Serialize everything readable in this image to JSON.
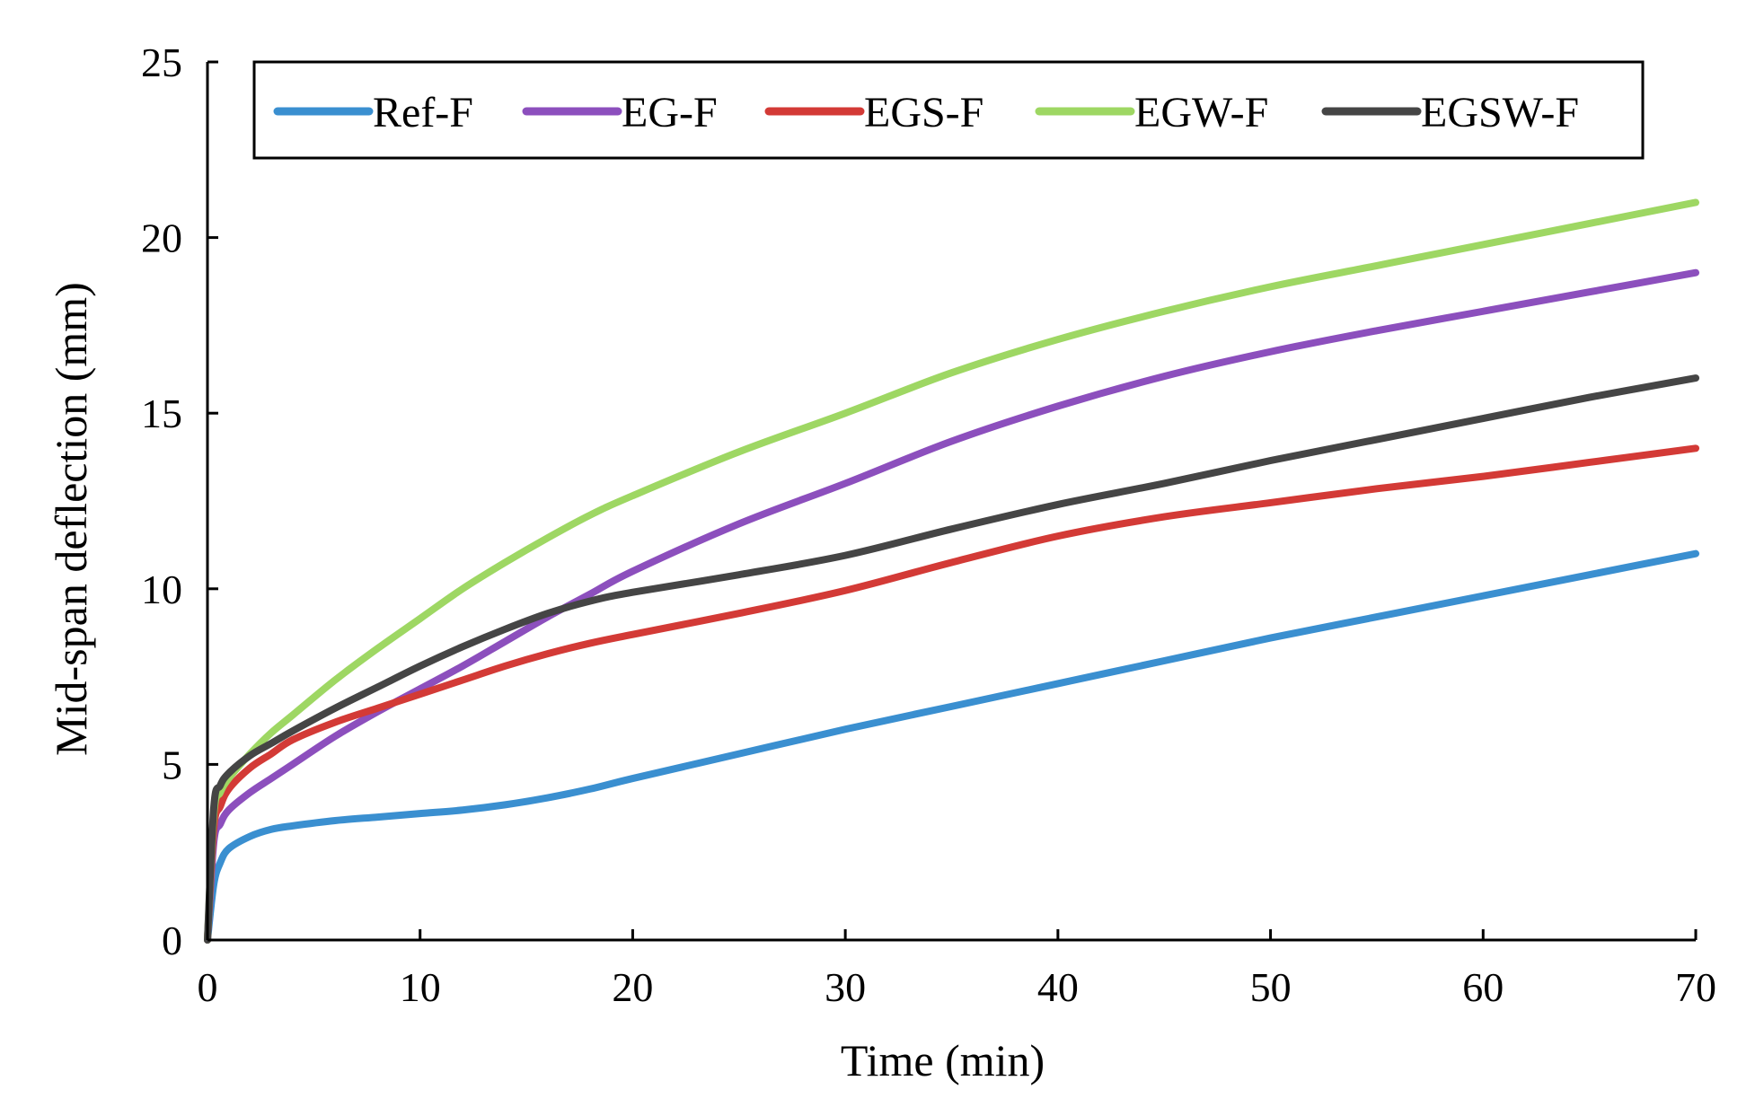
{
  "chart_data": {
    "type": "line",
    "title": "",
    "xlabel": "Time (min)",
    "ylabel": "Mid-span deflection (mm)",
    "xlim": [
      0,
      70
    ],
    "ylim": [
      0,
      25
    ],
    "xticks": [
      0,
      10,
      20,
      30,
      40,
      50,
      60,
      70
    ],
    "yticks": [
      0,
      5,
      10,
      15,
      20,
      25
    ],
    "grid": false,
    "legend_position": "top",
    "series": [
      {
        "name": "Ref-F",
        "color": "#3a8fd0",
        "x": [
          0,
          0.3,
          0.6,
          1,
          2,
          3,
          4,
          6,
          8,
          10,
          12,
          14,
          16,
          18,
          20,
          25,
          30,
          35,
          40,
          45,
          50,
          55,
          60,
          65,
          70
        ],
        "y": [
          0,
          1.6,
          2.2,
          2.6,
          2.95,
          3.15,
          3.25,
          3.4,
          3.5,
          3.6,
          3.7,
          3.85,
          4.05,
          4.3,
          4.6,
          5.3,
          6.0,
          6.65,
          7.3,
          7.95,
          8.6,
          9.2,
          9.8,
          10.4,
          11.0
        ]
      },
      {
        "name": "EG-F",
        "color": "#8c4fbd",
        "x": [
          0,
          0.3,
          0.6,
          1,
          2,
          3,
          4,
          6,
          8,
          10,
          12,
          14,
          16,
          18,
          20,
          25,
          30,
          35,
          40,
          45,
          50,
          55,
          60,
          65,
          70
        ],
        "y": [
          0,
          2.8,
          3.3,
          3.7,
          4.2,
          4.6,
          5.0,
          5.8,
          6.5,
          7.15,
          7.8,
          8.5,
          9.2,
          9.85,
          10.5,
          11.85,
          13.0,
          14.2,
          15.2,
          16.05,
          16.75,
          17.35,
          17.9,
          18.45,
          19.0
        ]
      },
      {
        "name": "EGS-F",
        "color": "#d33a36",
        "x": [
          0,
          0.3,
          0.6,
          1,
          2,
          3,
          4,
          6,
          8,
          10,
          12,
          14,
          16,
          18,
          20,
          25,
          30,
          35,
          40,
          45,
          50,
          55,
          60,
          65,
          70
        ],
        "y": [
          0,
          3.2,
          3.8,
          4.3,
          4.9,
          5.3,
          5.7,
          6.2,
          6.6,
          7.0,
          7.4,
          7.8,
          8.15,
          8.45,
          8.7,
          9.3,
          9.95,
          10.75,
          11.5,
          12.05,
          12.45,
          12.85,
          13.2,
          13.6,
          14.0
        ]
      },
      {
        "name": "EGW-F",
        "color": "#9ed763",
        "x": [
          0,
          0.3,
          0.6,
          1,
          2,
          3,
          4,
          6,
          8,
          10,
          12,
          14,
          16,
          18,
          20,
          25,
          30,
          35,
          40,
          45,
          50,
          55,
          60,
          65,
          70
        ],
        "y": [
          0,
          3.6,
          4.2,
          4.6,
          5.3,
          5.9,
          6.4,
          7.4,
          8.3,
          9.15,
          10.0,
          10.75,
          11.45,
          12.1,
          12.65,
          13.9,
          15.0,
          16.15,
          17.1,
          17.9,
          18.6,
          19.2,
          19.8,
          20.4,
          21.0
        ]
      },
      {
        "name": "EGSW-F",
        "color": "#454545",
        "x": [
          0,
          0.3,
          0.6,
          1,
          2,
          3,
          4,
          6,
          8,
          10,
          12,
          14,
          16,
          18,
          20,
          25,
          30,
          35,
          40,
          45,
          50,
          55,
          60,
          65,
          70
        ],
        "y": [
          0,
          3.8,
          4.4,
          4.75,
          5.25,
          5.6,
          5.95,
          6.6,
          7.2,
          7.8,
          8.35,
          8.85,
          9.3,
          9.65,
          9.9,
          10.4,
          10.95,
          11.7,
          12.4,
          13.0,
          13.65,
          14.25,
          14.85,
          15.45,
          16.0
        ]
      }
    ]
  }
}
